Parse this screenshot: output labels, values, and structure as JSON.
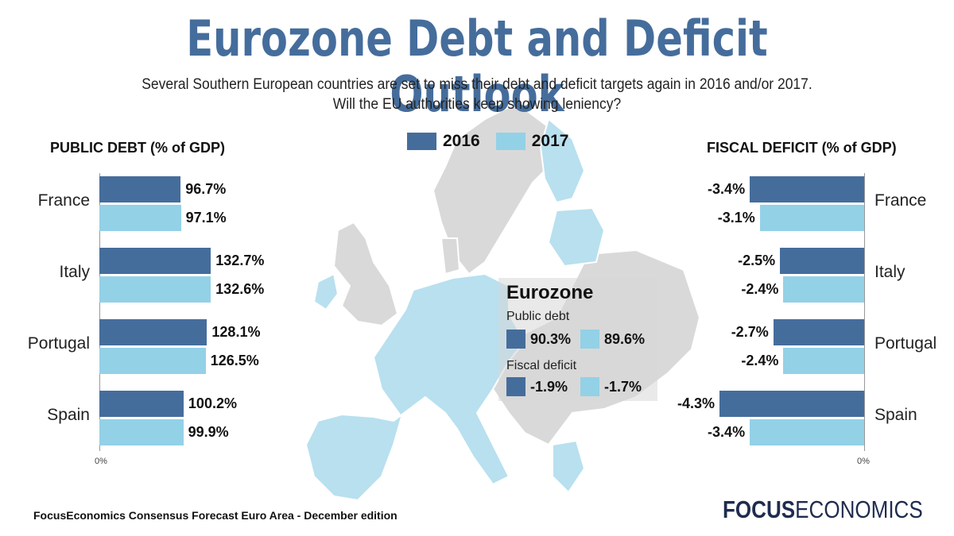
{
  "header": {
    "title": "Eurozone Debt and Deficit Outlook",
    "subtitle_line1": "Several Southern European countries are set to miss their debt and deficit targets again in 2016 and/or 2017.",
    "subtitle_line2": "Will the EU authorities keep showing leniency?"
  },
  "legend": {
    "label_2016": "2016",
    "label_2017": "2017"
  },
  "colors": {
    "y2016": "#456d9c",
    "y2017": "#93d1e7",
    "map_gray": "#d9d9d9",
    "map_light": "#c9e6f1"
  },
  "chart_data": [
    {
      "type": "bar",
      "orientation": "horizontal",
      "title": "PUBLIC DEBT (% of GDP)",
      "categories": [
        "France",
        "Italy",
        "Portugal",
        "Spain"
      ],
      "series": [
        {
          "name": "2016",
          "values": [
            96.7,
            132.7,
            128.1,
            100.2
          ],
          "labels": [
            "96.7%",
            "132.7%",
            "128.1%",
            "100.2%"
          ]
        },
        {
          "name": "2017",
          "values": [
            97.1,
            132.6,
            126.5,
            99.9
          ],
          "labels": [
            "97.1%",
            "132.6%",
            "126.5%",
            "99.9%"
          ]
        }
      ],
      "axis_label": "0%",
      "xlim": [
        0,
        140
      ]
    },
    {
      "type": "bar",
      "orientation": "horizontal",
      "title": "FISCAL DEFICIT (% of GDP)",
      "categories": [
        "France",
        "Italy",
        "Portugal",
        "Spain"
      ],
      "series": [
        {
          "name": "2016",
          "values": [
            -3.4,
            -2.5,
            -2.7,
            -4.3
          ],
          "labels": [
            "-3.4%",
            "-2.5%",
            "-2.7%",
            "-4.3%"
          ]
        },
        {
          "name": "2017",
          "values": [
            -3.1,
            -2.4,
            -2.4,
            -3.4
          ],
          "labels": [
            "-3.1%",
            "-2.4%",
            "-2.4%",
            "-3.4%"
          ]
        }
      ],
      "axis_label": "0%",
      "xlim": [
        -4.5,
        0
      ]
    }
  ],
  "eurozone": {
    "title": "Eurozone",
    "debt_label": "Public debt",
    "debt_2016": "90.3%",
    "debt_2017": "89.6%",
    "deficit_label": "Fiscal deficit",
    "deficit_2016": "-1.9%",
    "deficit_2017": "-1.7%"
  },
  "footer": {
    "source": "FocusEconomics Consensus Forecast Euro Area - December edition",
    "logo_bold": "FOCUS",
    "logo_regular": "ECONOMICS"
  },
  "map": {
    "icon": "europe-map-icon"
  }
}
